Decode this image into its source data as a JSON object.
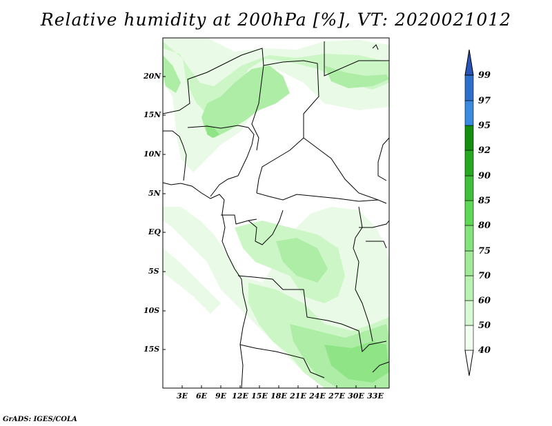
{
  "title": "Relative humidity at 200hPa [%], VT: 2020021012",
  "credit": "GrADS: IGES/COLA",
  "lat_labels": [
    "20N",
    "15N",
    "10N",
    "5N",
    "EQ",
    "5S",
    "10S",
    "15S"
  ],
  "lon_labels": [
    "3E",
    "6E",
    "9E",
    "12E",
    "15E",
    "18E",
    "21E",
    "24E",
    "27E",
    "30E",
    "33E"
  ],
  "colorbar": {
    "levels": [
      "40",
      "50",
      "60",
      "70",
      "75",
      "80",
      "85",
      "90",
      "92",
      "95",
      "97",
      "99"
    ],
    "colors": [
      "#f0fff0",
      "#d7f9d3",
      "#b8f3b1",
      "#a0ea98",
      "#85e37c",
      "#5fd955",
      "#3fbf3a",
      "#26a821",
      "#148f12",
      "#3a8be0",
      "#2e6fcc",
      "#2a55b8"
    ]
  },
  "shading": {
    "c40": "#e9fbe6",
    "c50": "#cdf6c6",
    "c60": "#aeedA5",
    "c70": "#8fe486"
  }
}
